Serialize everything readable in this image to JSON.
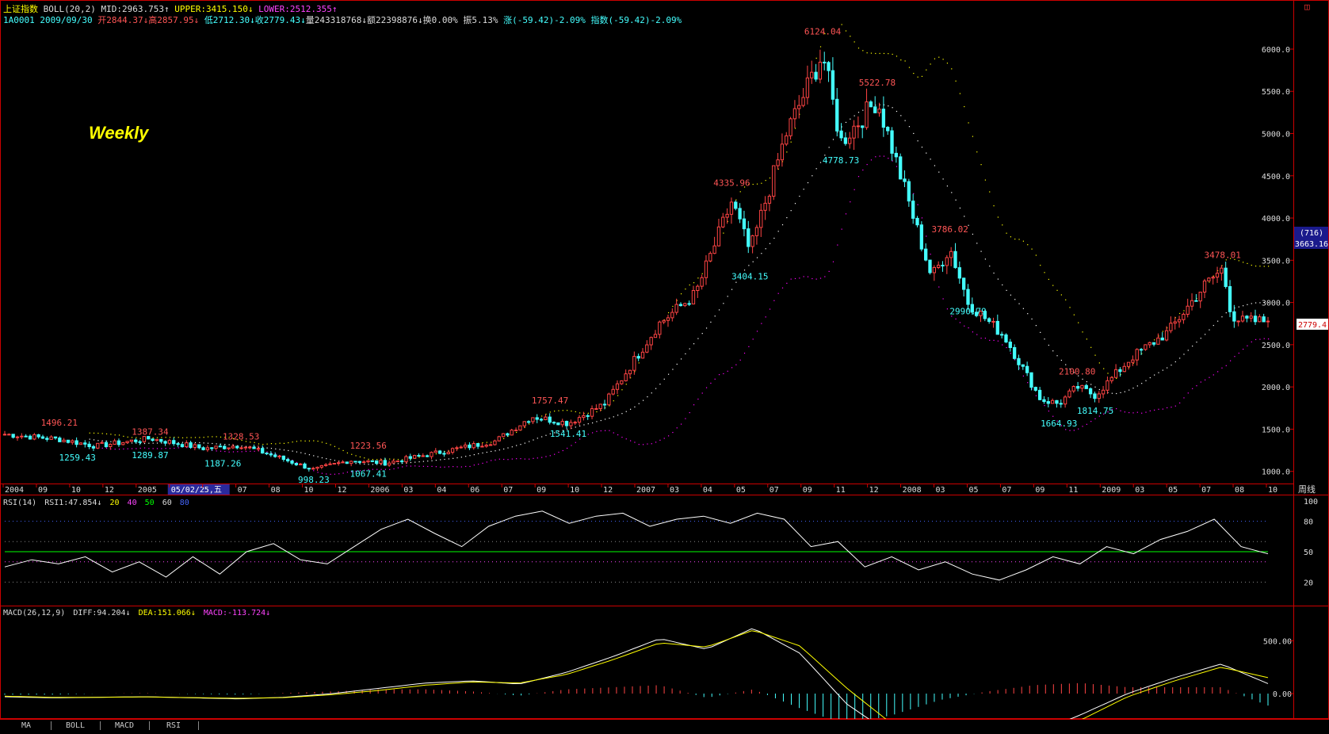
{
  "header": {
    "index_name": "上证指数",
    "indicator": "BOLL(20,2)",
    "mid": "MID:2963.753↑",
    "upper": "UPPER:3415.150↓",
    "lower": "LOWER:2512.355↑",
    "code_date": "1A0001 2009/09/30",
    "open": "开2844.37↓",
    "high": "高2857.95↓",
    "low": "低2712.30↓",
    "close": "收2779.43↓",
    "volume": "量243318768↓",
    "amount": "额22398876↓",
    "turnover": "换0.00%",
    "amplitude": "振5.13%",
    "change": "涨(-59.42)-2.09%",
    "index_change": "指数(-59.42)-2.09%"
  },
  "weekly_label": "Weekly",
  "right_marker": "◫",
  "price_axis": {
    "labels": [
      "6000.0",
      "5500.0",
      "5000.0",
      "4500.0",
      "4000.0",
      "3500.0",
      "3000.0",
      "2500.0",
      "2000.0",
      "1500.0",
      "1000.0"
    ],
    "badge_count": "(716)",
    "badge_value": "3663.16",
    "last_price": "2779.4"
  },
  "time_axis": {
    "labels": [
      "2004",
      "09",
      "10",
      "12",
      "2005",
      "05/02/25,五",
      "5",
      "07",
      "08",
      "10",
      "12",
      "2006",
      "03",
      "04",
      "06",
      "07",
      "09",
      "10",
      "12",
      "2007",
      "03",
      "04",
      "05",
      "07",
      "09",
      "11",
      "12",
      "2008",
      "03",
      "05",
      "07",
      "09",
      "11",
      "2009",
      "03",
      "05",
      "07",
      "08",
      "10"
    ],
    "period": "周线"
  },
  "rsi_header": {
    "name": "RSI(14)",
    "value": "RSI1:47.854↓",
    "l20": "20",
    "l40": "40",
    "l50": "50",
    "l60": "60",
    "l80": "80"
  },
  "rsi_axis": [
    "100",
    "80",
    "50",
    "20"
  ],
  "macd_header": {
    "name": "MACD(26,12,9)",
    "diff": "DIFF:94.204↓",
    "dea": "DEA:151.066↓",
    "macd": "MACD:-113.724↓"
  },
  "macd_axis": [
    "500.00",
    "0.00"
  ],
  "tabs": [
    "MA",
    "BOLL",
    "MACD",
    "RSI"
  ],
  "colors": {
    "up": "#ff4444",
    "down": "#44ffff",
    "upper": "#ffff00",
    "mid": "#ffffff",
    "lower": "#ff00ff",
    "frame": "#cc0000",
    "rsi_line": "#ffffff",
    "rsi_mid": "#00ff00",
    "diff": "#ffffff",
    "dea": "#ffff00"
  },
  "chart_data": {
    "type": "candlestick",
    "title": "上证指数",
    "y_range": [
      950,
      6300
    ],
    "annotations_high": [
      {
        "date": "2004-04",
        "value": "1496.21"
      },
      {
        "date": "2004-09",
        "value": "1387.34"
      },
      {
        "date": "2005-02",
        "value": "1328.53"
      },
      {
        "date": "2005-09",
        "value": "1223.56"
      },
      {
        "date": "2006-07",
        "value": "1757.47"
      },
      {
        "date": "2007-05",
        "value": "4335.96"
      },
      {
        "date": "2007-10",
        "value": "6124.04"
      },
      {
        "date": "2008-01",
        "value": "5522.78"
      },
      {
        "date": "2008-05",
        "value": "3786.02"
      },
      {
        "date": "2008-12",
        "value": "2100.80"
      },
      {
        "date": "2009-08",
        "value": "3478.01"
      }
    ],
    "annotations_low": [
      {
        "date": "2004-05",
        "value": "1259.43"
      },
      {
        "date": "2004-09",
        "value": "1289.87"
      },
      {
        "date": "2005-01",
        "value": "1187.26"
      },
      {
        "date": "2005-06",
        "value": "998.23"
      },
      {
        "date": "2005-09",
        "value": "1067.41"
      },
      {
        "date": "2006-08",
        "value": "1541.41"
      },
      {
        "date": "2007-06",
        "value": "3404.15"
      },
      {
        "date": "2007-11",
        "value": "4778.73"
      },
      {
        "date": "2008-06",
        "value": "2990.79"
      },
      {
        "date": "2008-11",
        "value": "1664.93"
      },
      {
        "date": "2009-01",
        "value": "1814.75"
      }
    ],
    "close_anchors": [
      {
        "date": "2004-01",
        "close": 1440
      },
      {
        "date": "2004-04",
        "close": 1380
      },
      {
        "date": "2004-06",
        "close": 1300
      },
      {
        "date": "2004-09",
        "close": 1390
      },
      {
        "date": "2004-12",
        "close": 1270
      },
      {
        "date": "2005-02",
        "close": 1310
      },
      {
        "date": "2005-04",
        "close": 1170
      },
      {
        "date": "2005-06",
        "close": 1020
      },
      {
        "date": "2005-08",
        "close": 1130
      },
      {
        "date": "2005-10",
        "close": 1100
      },
      {
        "date": "2006-01",
        "close": 1230
      },
      {
        "date": "2006-04",
        "close": 1360
      },
      {
        "date": "2006-06",
        "close": 1650
      },
      {
        "date": "2006-08",
        "close": 1570
      },
      {
        "date": "2006-10",
        "close": 1800
      },
      {
        "date": "2007-01",
        "close": 2750
      },
      {
        "date": "2007-03",
        "close": 3100
      },
      {
        "date": "2007-05",
        "close": 4200
      },
      {
        "date": "2007-06",
        "close": 3600
      },
      {
        "date": "2007-08",
        "close": 5000
      },
      {
        "date": "2007-10",
        "close": 5950
      },
      {
        "date": "2007-11",
        "close": 4900
      },
      {
        "date": "2008-01",
        "close": 5400
      },
      {
        "date": "2008-03",
        "close": 4000
      },
      {
        "date": "2008-04",
        "close": 3300
      },
      {
        "date": "2008-05",
        "close": 3650
      },
      {
        "date": "2008-06",
        "close": 3000
      },
      {
        "date": "2008-08",
        "close": 2600
      },
      {
        "date": "2008-10",
        "close": 1850
      },
      {
        "date": "2008-11",
        "close": 1800
      },
      {
        "date": "2008-12",
        "close": 2000
      },
      {
        "date": "2009-01",
        "close": 1900
      },
      {
        "date": "2009-03",
        "close": 2350
      },
      {
        "date": "2009-05",
        "close": 2650
      },
      {
        "date": "2009-07",
        "close": 3200
      },
      {
        "date": "2009-08",
        "close": 3400
      },
      {
        "date": "2009-08b",
        "close": 2850
      },
      {
        "date": "2009-09",
        "close": 2779.43
      }
    ],
    "rsi_anchors": [
      35,
      42,
      38,
      45,
      30,
      40,
      25,
      45,
      28,
      50,
      58,
      42,
      38,
      55,
      72,
      82,
      68,
      55,
      75,
      85,
      90,
      78,
      85,
      88,
      75,
      82,
      85,
      78,
      88,
      82,
      55,
      60,
      35,
      45,
      32,
      40,
      28,
      22,
      32,
      45,
      38,
      55,
      48,
      62,
      70,
      82,
      55,
      47.854
    ],
    "macd_diff_anchors": [
      -30,
      -40,
      -35,
      -30,
      -40,
      -50,
      -35,
      0,
      50,
      100,
      120,
      90,
      200,
      350,
      520,
      420,
      620,
      380,
      -100,
      -400,
      -480,
      -460,
      -380,
      -200,
      0,
      150,
      280,
      94.204
    ],
    "macd_dea_anchors": [
      -25,
      -35,
      -35,
      -32,
      -38,
      -45,
      -38,
      -10,
      30,
      80,
      110,
      100,
      180,
      320,
      480,
      440,
      600,
      450,
      50,
      -300,
      -450,
      -470,
      -420,
      -250,
      -30,
      120,
      250,
      151.066
    ]
  }
}
